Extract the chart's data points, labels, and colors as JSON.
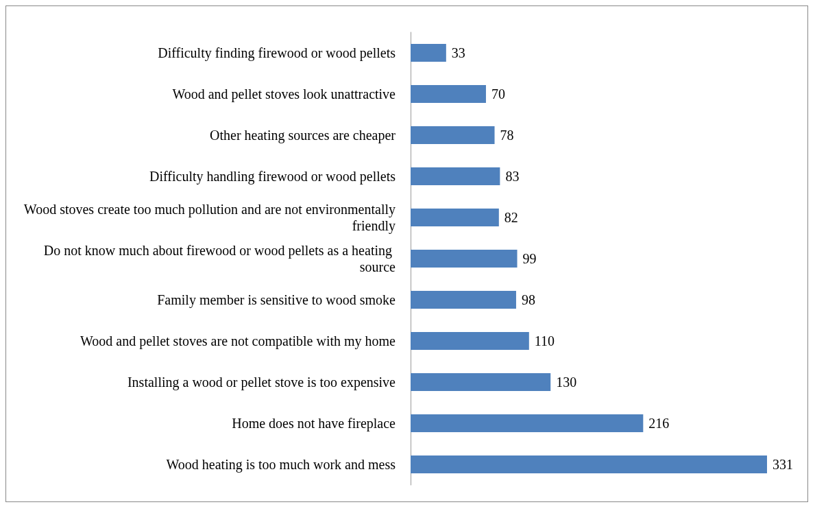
{
  "chart_data": {
    "type": "bar",
    "orientation": "horizontal",
    "categories": [
      "Difficulty finding firewood or wood pellets",
      "Wood and pellet stoves look unattractive",
      "Other heating sources are cheaper",
      "Difficulty handling firewood or wood pellets",
      "Wood stoves create too much pollution and are not environmentally friendly",
      "Do not know much about firewood or wood pellets as a heating source",
      "Family member is sensitive to wood smoke",
      "Wood and pellet stoves are not compatible with my home",
      "Installing a wood or pellet stove is too expensive",
      "Home does not have fireplace",
      "Wood heating is too much work and mess"
    ],
    "values": [
      33,
      70,
      78,
      83,
      82,
      99,
      98,
      110,
      130,
      216,
      331
    ],
    "color": "#4f81bd",
    "data_labels": true,
    "tick_labels": "y"
  }
}
